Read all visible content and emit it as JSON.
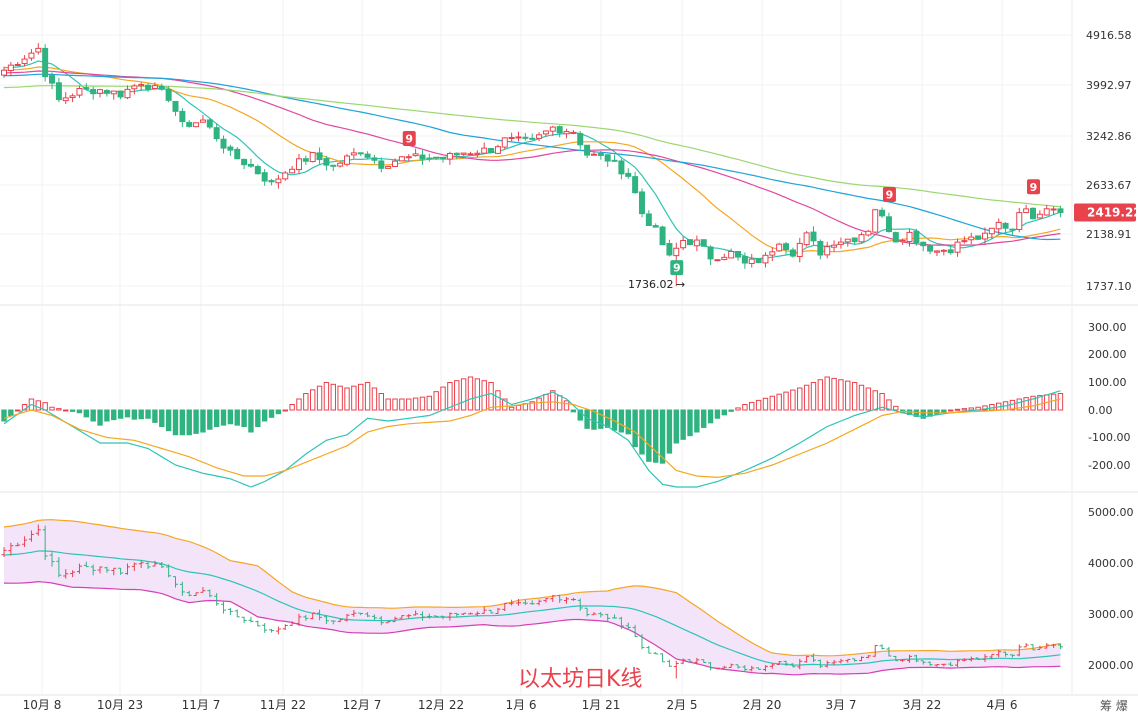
{
  "watermark": "以太坊日K线",
  "corner_text": "筹 爆",
  "chart_data": {
    "type": "candlestick",
    "x_ticks": [
      "10月 8",
      "10月 23",
      "11月 7",
      "11月 22",
      "12月 7",
      "12月 22",
      "1月 6",
      "1月 21",
      "2月 5",
      "2月 20",
      "3月 7",
      "3月 22",
      "4月 6"
    ],
    "price_panel": {
      "yticks": [
        "4916.58",
        "3992.97",
        "3242.86",
        "2633.67",
        "2138.91",
        "1737.10"
      ],
      "ylim": [
        1737.1,
        4916.58
      ],
      "scale": "log",
      "last_price": "2419.22",
      "low_annotation": "1736.02",
      "td_labels": [
        {
          "text": "9",
          "color": "#e8424c",
          "day": 59,
          "price": 3090
        },
        {
          "text": "9",
          "color": "#2fb380",
          "day": 98,
          "price": 1810
        },
        {
          "text": "9",
          "color": "#e8424c",
          "day": 129,
          "price": 2450
        },
        {
          "text": "9",
          "color": "#e8424c",
          "day": 150,
          "price": 2530
        }
      ],
      "anchors": [
        [
          0,
          4250
        ],
        [
          5,
          4650
        ],
        [
          6,
          4200
        ],
        [
          8,
          3750
        ],
        [
          11,
          3900
        ],
        [
          14,
          3920
        ],
        [
          17,
          3850
        ],
        [
          20,
          4050
        ],
        [
          24,
          3800
        ],
        [
          26,
          3380
        ],
        [
          29,
          3450
        ],
        [
          33,
          3000
        ],
        [
          36,
          2850
        ],
        [
          39,
          2650
        ],
        [
          42,
          2860
        ],
        [
          45,
          2980
        ],
        [
          48,
          2850
        ],
        [
          52,
          3050
        ],
        [
          55,
          2870
        ],
        [
          58,
          2950
        ],
        [
          61,
          2960
        ],
        [
          64,
          2950
        ],
        [
          67,
          3020
        ],
        [
          71,
          3060
        ],
        [
          73,
          3180
        ],
        [
          77,
          3160
        ],
        [
          80,
          3350
        ],
        [
          83,
          3300
        ],
        [
          85,
          3000
        ],
        [
          88,
          2940
        ],
        [
          91,
          2750
        ],
        [
          93,
          2350
        ],
        [
          95,
          2180
        ],
        [
          97,
          1950
        ],
        [
          99,
          2100
        ],
        [
          101,
          2080
        ],
        [
          103,
          1960
        ],
        [
          106,
          1990
        ],
        [
          108,
          1900
        ],
        [
          111,
          1950
        ],
        [
          113,
          2100
        ],
        [
          115,
          2000
        ],
        [
          117,
          2140
        ],
        [
          119,
          2000
        ],
        [
          121,
          2090
        ],
        [
          124,
          2120
        ],
        [
          126,
          2200
        ],
        [
          127,
          2400
        ],
        [
          128,
          2300
        ],
        [
          130,
          2110
        ],
        [
          132,
          2160
        ],
        [
          134,
          2060
        ],
        [
          136,
          2010
        ],
        [
          138,
          2030
        ],
        [
          140,
          2100
        ],
        [
          143,
          2130
        ],
        [
          145,
          2250
        ],
        [
          147,
          2200
        ],
        [
          148,
          2390
        ],
        [
          150,
          2330
        ],
        [
          152,
          2419
        ]
      ]
    },
    "macd_panel": {
      "yticks": [
        "300.00",
        "200.00",
        "100.00",
        "0.00",
        "-100.00",
        "-200.00"
      ],
      "ylim": [
        -290,
        340
      ],
      "dif_anchors": [
        [
          0,
          -50
        ],
        [
          4,
          20
        ],
        [
          6,
          0
        ],
        [
          10,
          -60
        ],
        [
          14,
          -120
        ],
        [
          18,
          -120
        ],
        [
          21,
          -140
        ],
        [
          25,
          -200
        ],
        [
          29,
          -230
        ],
        [
          33,
          -250
        ],
        [
          36,
          -280
        ],
        [
          38,
          -260
        ],
        [
          41,
          -220
        ],
        [
          44,
          -160
        ],
        [
          47,
          -110
        ],
        [
          50,
          -90
        ],
        [
          53,
          -30
        ],
        [
          56,
          -40
        ],
        [
          59,
          -30
        ],
        [
          62,
          -20
        ],
        [
          65,
          10
        ],
        [
          68,
          40
        ],
        [
          71,
          60
        ],
        [
          74,
          20
        ],
        [
          77,
          40
        ],
        [
          80,
          65
        ],
        [
          82,
          40
        ],
        [
          85,
          -30
        ],
        [
          88,
          -60
        ],
        [
          91,
          -110
        ],
        [
          94,
          -220
        ],
        [
          96,
          -270
        ],
        [
          98,
          -280
        ],
        [
          101,
          -280
        ],
        [
          104,
          -260
        ],
        [
          108,
          -220
        ],
        [
          112,
          -175
        ],
        [
          116,
          -120
        ],
        [
          120,
          -60
        ],
        [
          124,
          -20
        ],
        [
          128,
          10
        ],
        [
          131,
          -10
        ],
        [
          134,
          -25
        ],
        [
          138,
          -10
        ],
        [
          142,
          0
        ],
        [
          146,
          15
        ],
        [
          150,
          40
        ],
        [
          154,
          70
        ]
      ],
      "dea_anchors": [
        [
          0,
          -30
        ],
        [
          4,
          0
        ],
        [
          7,
          -20
        ],
        [
          11,
          -70
        ],
        [
          15,
          -100
        ],
        [
          19,
          -110
        ],
        [
          23,
          -140
        ],
        [
          27,
          -170
        ],
        [
          31,
          -210
        ],
        [
          35,
          -240
        ],
        [
          38,
          -240
        ],
        [
          41,
          -220
        ],
        [
          44,
          -190
        ],
        [
          47,
          -160
        ],
        [
          50,
          -130
        ],
        [
          53,
          -80
        ],
        [
          56,
          -60
        ],
        [
          59,
          -50
        ],
        [
          62,
          -45
        ],
        [
          65,
          -40
        ],
        [
          68,
          -20
        ],
        [
          71,
          10
        ],
        [
          74,
          15
        ],
        [
          77,
          25
        ],
        [
          80,
          30
        ],
        [
          83,
          20
        ],
        [
          86,
          -5
        ],
        [
          89,
          -40
        ],
        [
          92,
          -80
        ],
        [
          95,
          -150
        ],
        [
          98,
          -220
        ],
        [
          101,
          -240
        ],
        [
          104,
          -245
        ],
        [
          108,
          -230
        ],
        [
          112,
          -200
        ],
        [
          116,
          -160
        ],
        [
          120,
          -120
        ],
        [
          124,
          -70
        ],
        [
          128,
          -20
        ],
        [
          131,
          -5
        ],
        [
          134,
          -10
        ],
        [
          138,
          -10
        ],
        [
          142,
          -5
        ],
        [
          146,
          0
        ],
        [
          150,
          15
        ],
        [
          154,
          40
        ]
      ]
    },
    "boll_panel": {
      "yticks": [
        "5000.00",
        "4000.00",
        "3000.00",
        "2000.00"
      ],
      "ylim": [
        1500,
        5350
      ],
      "width_anchors": [
        [
          0,
          1100
        ],
        [
          10,
          1300
        ],
        [
          20,
          1150
        ],
        [
          27,
          1200
        ],
        [
          33,
          800
        ],
        [
          37,
          1000
        ],
        [
          42,
          600
        ],
        [
          48,
          500
        ],
        [
          55,
          500
        ],
        [
          62,
          400
        ],
        [
          70,
          350
        ],
        [
          75,
          500
        ],
        [
          82,
          500
        ],
        [
          88,
          600
        ],
        [
          93,
          1000
        ],
        [
          98,
          1300
        ],
        [
          103,
          1000
        ],
        [
          108,
          650
        ],
        [
          112,
          400
        ],
        [
          120,
          350
        ],
        [
          126,
          400
        ],
        [
          132,
          330
        ],
        [
          138,
          330
        ],
        [
          144,
          320
        ],
        [
          150,
          360
        ],
        [
          154,
          450
        ]
      ]
    }
  }
}
